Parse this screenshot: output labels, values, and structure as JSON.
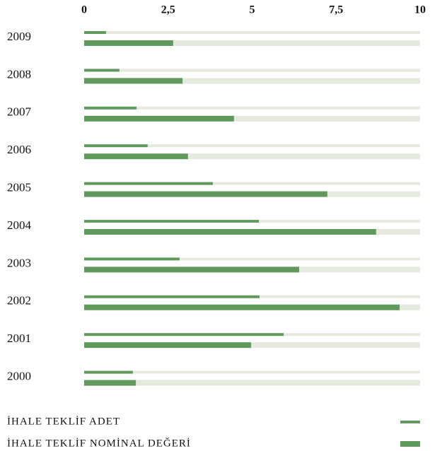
{
  "chart_data": {
    "type": "bar",
    "orientation": "horizontal",
    "categories": [
      "2009",
      "2008",
      "2007",
      "2006",
      "2005",
      "2004",
      "2003",
      "2002",
      "2001",
      "2000"
    ],
    "series": [
      {
        "name": "İHALE TEKLİF ADET",
        "color": "#5f9a5c",
        "values": [
          0.65,
          1.05,
          1.56,
          1.89,
          3.83,
          5.2,
          2.84,
          5.22,
          5.94,
          1.45
        ]
      },
      {
        "name": "İHALE TEKLİF NOMİNAL DEĞERİ",
        "color": "#5f9a5c",
        "values": [
          2.65,
          2.93,
          4.46,
          3.09,
          7.24,
          8.69,
          6.4,
          9.39,
          4.97,
          1.54
        ]
      }
    ],
    "xlim": [
      0,
      10
    ],
    "xticks": [
      0,
      {
        "value": 2.5,
        "label": "2,5"
      },
      5,
      {
        "value": 7.5,
        "label": "7,5"
      },
      10
    ],
    "track_color": "#e5eadf"
  }
}
